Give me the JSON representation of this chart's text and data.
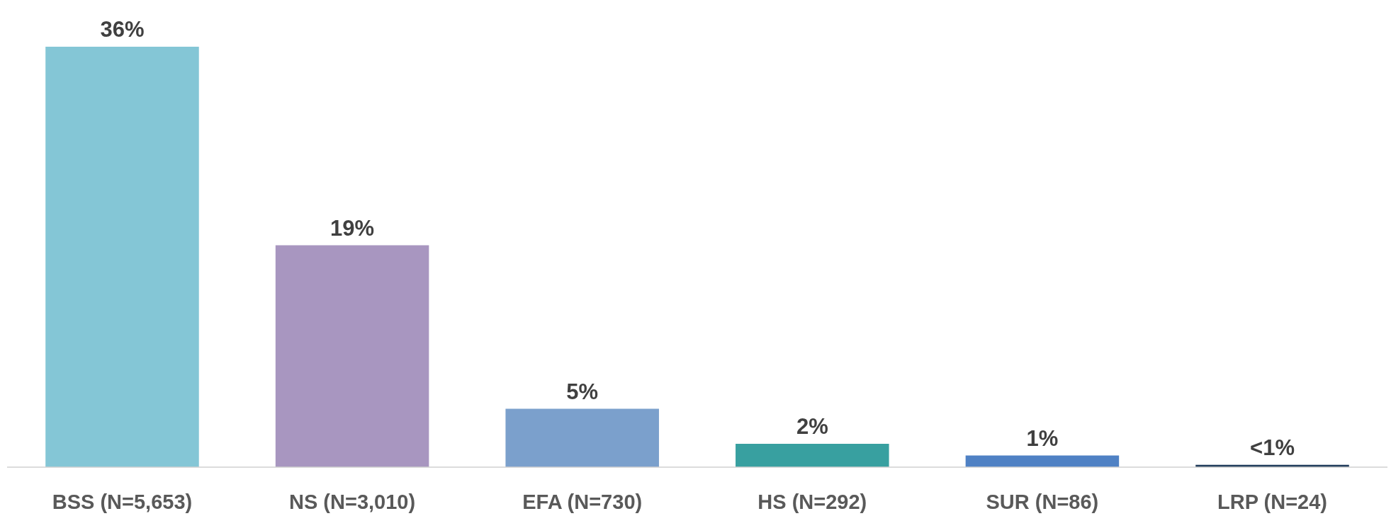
{
  "chart_data": {
    "type": "bar",
    "categories": [
      "BSS (N=5,653)",
      "NS (N=3,010)",
      "EFA (N=730)",
      "HS (N=292)",
      "SUR (N=86)",
      "LRP (N=24)"
    ],
    "values": [
      36,
      19,
      5,
      2,
      1,
      0.2
    ],
    "value_labels": [
      "36%",
      "19%",
      "5%",
      "2%",
      "1%",
      "<1%"
    ],
    "colors": [
      "#84c6d6",
      "#a896c0",
      "#7ba0cc",
      "#38a0a0",
      "#4f81c4",
      "#1f3b5a"
    ]
  }
}
